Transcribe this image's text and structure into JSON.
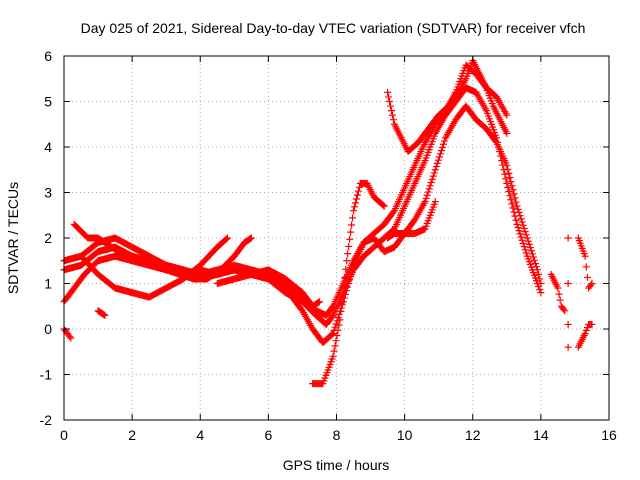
{
  "chart_data": {
    "type": "scatter",
    "title": "Day 025 of 2021, Sidereal Day-to-day VTEC variation (SDTVAR) for receiver vfch",
    "xlabel": "GPS time / hours",
    "ylabel": "SDTVAR / TECUs",
    "xlim": [
      0,
      16
    ],
    "ylim": [
      -2,
      6
    ],
    "xticks": [
      0,
      2,
      4,
      6,
      8,
      10,
      12,
      14,
      16
    ],
    "yticks": [
      -2,
      -1,
      0,
      1,
      2,
      3,
      4,
      5,
      6
    ],
    "grid": true,
    "marker": "+",
    "color": "#ff0000",
    "tracks": [
      [
        [
          0.0,
          0.6
        ],
        [
          0.3,
          0.9
        ],
        [
          0.6,
          1.2
        ],
        [
          1.0,
          1.5
        ],
        [
          1.5,
          1.6
        ],
        [
          2.0,
          1.5
        ],
        [
          2.5,
          1.4
        ],
        [
          3.0,
          1.3
        ],
        [
          3.5,
          1.2
        ],
        [
          4.0,
          1.3
        ],
        [
          4.5,
          1.2
        ],
        [
          5.0,
          1.3
        ],
        [
          5.5,
          1.2
        ],
        [
          6.0,
          1.1
        ],
        [
          6.5,
          0.8
        ],
        [
          7.0,
          0.6
        ],
        [
          7.4,
          0.3
        ],
        [
          7.7,
          0.1
        ],
        [
          7.9,
          0.3
        ],
        [
          8.2,
          0.8
        ],
        [
          8.5,
          1.3
        ],
        [
          8.8,
          1.6
        ],
        [
          9.1,
          1.8
        ],
        [
          9.4,
          2.0
        ],
        [
          9.7,
          2.2
        ],
        [
          10.0,
          2.7
        ],
        [
          10.3,
          3.2
        ],
        [
          10.6,
          3.7
        ],
        [
          10.9,
          4.3
        ],
        [
          11.2,
          4.7
        ],
        [
          11.5,
          5.0
        ],
        [
          11.8,
          5.3
        ],
        [
          12.1,
          5.2
        ],
        [
          12.4,
          4.8
        ],
        [
          12.7,
          4.2
        ],
        [
          13.0,
          3.2
        ],
        [
          13.3,
          2.3
        ],
        [
          13.6,
          1.6
        ],
        [
          13.9,
          1.0
        ],
        [
          14.0,
          0.8
        ]
      ],
      [
        [
          0.0,
          1.3
        ],
        [
          0.5,
          1.4
        ],
        [
          1.0,
          1.7
        ],
        [
          1.5,
          1.8
        ],
        [
          2.0,
          1.6
        ],
        [
          2.5,
          1.5
        ],
        [
          3.0,
          1.4
        ],
        [
          3.5,
          1.3
        ],
        [
          4.0,
          1.2
        ],
        [
          4.5,
          1.3
        ],
        [
          5.0,
          1.4
        ],
        [
          5.5,
          1.3
        ],
        [
          6.0,
          1.2
        ],
        [
          6.5,
          1.0
        ],
        [
          7.0,
          0.7
        ],
        [
          7.4,
          0.4
        ],
        [
          7.7,
          0.3
        ],
        [
          7.9,
          0.5
        ],
        [
          8.2,
          1.0
        ],
        [
          8.5,
          1.5
        ],
        [
          8.8,
          1.9
        ],
        [
          9.1,
          2.1
        ],
        [
          9.4,
          2.3
        ],
        [
          9.7,
          2.6
        ],
        [
          10.0,
          3.1
        ],
        [
          10.3,
          3.6
        ],
        [
          10.6,
          4.1
        ],
        [
          10.9,
          4.5
        ],
        [
          11.2,
          4.8
        ],
        [
          11.5,
          5.2
        ],
        [
          11.8,
          5.8
        ],
        [
          12.1,
          5.6
        ],
        [
          12.4,
          5.3
        ],
        [
          12.7,
          5.1
        ],
        [
          13.0,
          4.7
        ]
      ],
      [
        [
          0.0,
          1.5
        ],
        [
          0.5,
          1.6
        ],
        [
          1.0,
          1.9
        ],
        [
          1.5,
          2.0
        ],
        [
          2.0,
          1.8
        ],
        [
          2.5,
          1.6
        ],
        [
          3.0,
          1.4
        ],
        [
          3.5,
          1.3
        ],
        [
          4.0,
          1.1
        ],
        [
          4.5,
          1.2
        ],
        [
          5.0,
          1.3
        ],
        [
          5.5,
          1.2
        ],
        [
          6.0,
          1.1
        ],
        [
          6.5,
          0.9
        ],
        [
          7.0,
          0.4
        ],
        [
          7.3,
          0.0
        ],
        [
          7.6,
          -0.3
        ],
        [
          7.9,
          -0.1
        ],
        [
          8.2,
          0.6
        ],
        [
          8.5,
          1.4
        ],
        [
          8.8,
          1.9
        ],
        [
          9.1,
          2.0
        ],
        [
          9.4,
          1.7
        ],
        [
          9.7,
          1.8
        ],
        [
          10.0,
          2.1
        ],
        [
          10.3,
          2.4
        ],
        [
          10.6,
          2.8
        ],
        [
          10.9,
          3.5
        ],
        [
          11.2,
          4.2
        ],
        [
          11.5,
          4.6
        ],
        [
          11.8,
          4.9
        ],
        [
          12.1,
          4.6
        ],
        [
          12.4,
          4.4
        ],
        [
          12.7,
          4.1
        ],
        [
          13.0,
          3.6
        ],
        [
          13.3,
          2.7
        ],
        [
          13.6,
          2.0
        ],
        [
          13.9,
          1.3
        ],
        [
          14.0,
          1.0
        ]
      ],
      [
        [
          0.5,
          1.6
        ],
        [
          1.0,
          1.2
        ],
        [
          1.5,
          0.9
        ],
        [
          2.0,
          0.8
        ],
        [
          2.5,
          0.7
        ],
        [
          3.0,
          0.9
        ],
        [
          3.5,
          1.1
        ],
        [
          4.0,
          1.4
        ],
        [
          4.5,
          1.8
        ],
        [
          4.8,
          2.0
        ]
      ],
      [
        [
          0.3,
          2.3
        ],
        [
          0.7,
          2.0
        ],
        [
          1.0,
          2.0
        ],
        [
          1.4,
          1.8
        ],
        [
          1.8,
          1.6
        ],
        [
          2.2,
          1.5
        ],
        [
          2.6,
          1.4
        ],
        [
          3.0,
          1.3
        ],
        [
          3.4,
          1.2
        ],
        [
          3.8,
          1.1
        ],
        [
          4.2,
          1.1
        ],
        [
          4.6,
          1.3
        ],
        [
          5.0,
          1.6
        ],
        [
          5.3,
          1.9
        ],
        [
          5.5,
          2.0
        ]
      ],
      [
        [
          4.5,
          1.0
        ],
        [
          5.0,
          1.1
        ],
        [
          5.5,
          1.2
        ],
        [
          6.0,
          1.3
        ],
        [
          6.5,
          1.1
        ],
        [
          7.0,
          0.8
        ],
        [
          7.3,
          0.5
        ],
        [
          7.5,
          0.6
        ]
      ],
      [
        [
          7.3,
          -1.2
        ],
        [
          7.6,
          -1.2
        ],
        [
          7.9,
          -0.6
        ],
        [
          8.1,
          0.2
        ],
        [
          8.3,
          1.5
        ],
        [
          8.5,
          2.6
        ],
        [
          8.7,
          3.2
        ],
        [
          8.9,
          3.2
        ],
        [
          9.1,
          2.9
        ],
        [
          9.4,
          2.7
        ]
      ],
      [
        [
          9.5,
          5.2
        ],
        [
          9.7,
          4.5
        ],
        [
          9.9,
          4.2
        ],
        [
          10.1,
          3.9
        ],
        [
          10.4,
          4.1
        ],
        [
          10.7,
          4.4
        ],
        [
          11.0,
          4.7
        ],
        [
          11.3,
          4.9
        ],
        [
          11.6,
          5.2
        ],
        [
          11.8,
          5.5
        ],
        [
          12.0,
          5.9
        ],
        [
          12.2,
          5.6
        ],
        [
          12.4,
          5.3
        ],
        [
          12.6,
          4.9
        ],
        [
          12.8,
          4.6
        ],
        [
          13.0,
          4.3
        ]
      ],
      [
        [
          9.5,
          2.0
        ],
        [
          9.7,
          2.1
        ],
        [
          10.0,
          2.1
        ],
        [
          10.3,
          2.1
        ],
        [
          10.6,
          2.2
        ],
        [
          10.9,
          2.8
        ]
      ],
      [
        [
          14.3,
          1.2
        ],
        [
          14.5,
          0.9
        ],
        [
          14.6,
          0.5
        ],
        [
          14.7,
          0.4
        ]
      ],
      [
        [
          15.1,
          2.0
        ],
        [
          15.3,
          1.6
        ],
        [
          15.4,
          0.9
        ],
        [
          15.5,
          1.0
        ]
      ],
      [
        [
          15.1,
          -0.4
        ],
        [
          15.3,
          -0.1
        ],
        [
          15.4,
          0.1
        ],
        [
          15.5,
          0.1
        ]
      ],
      [
        [
          0.0,
          0.0
        ],
        [
          0.1,
          -0.1
        ],
        [
          0.2,
          -0.2
        ]
      ],
      [
        [
          1.0,
          0.4
        ],
        [
          1.2,
          0.3
        ]
      ]
    ],
    "outliers": [
      [
        14.8,
        2.0
      ],
      [
        14.8,
        1.0
      ],
      [
        14.8,
        0.1
      ],
      [
        14.8,
        -0.4
      ]
    ]
  }
}
